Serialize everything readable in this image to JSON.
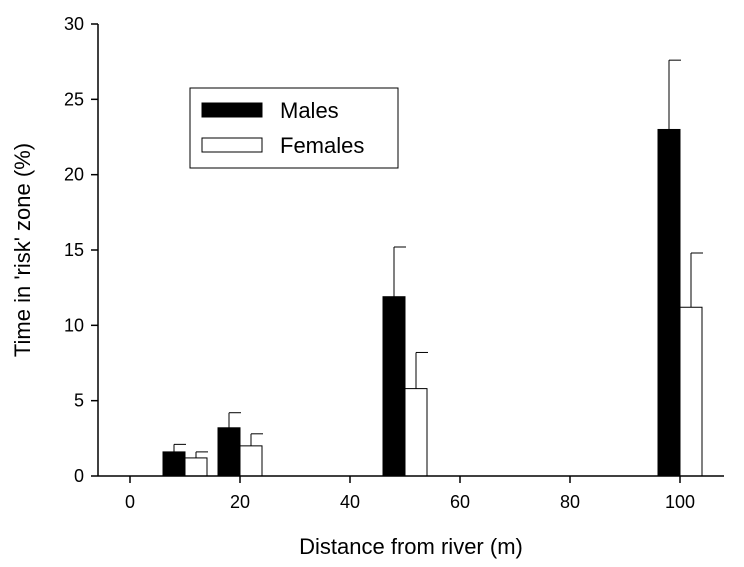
{
  "chart_data": {
    "type": "bar",
    "xlabel": "Distance from river (m)",
    "ylabel": "Time in 'risk' zone (%)",
    "xlim": [
      0,
      105
    ],
    "ylim": [
      0,
      30
    ],
    "x_ticks": [
      "0",
      "20",
      "40",
      "60",
      "80",
      "100"
    ],
    "y_ticks": [
      "0",
      "5",
      "10",
      "15",
      "20",
      "25",
      "30"
    ],
    "x": [
      10,
      20,
      50,
      100
    ],
    "series": [
      {
        "name": "Males",
        "color": "#000000",
        "values": [
          1.6,
          3.2,
          11.9,
          23.0
        ],
        "error": [
          0.5,
          1.0,
          3.3,
          4.6
        ]
      },
      {
        "name": "Females",
        "color": "#ffffff",
        "values": [
          1.2,
          2.0,
          5.8,
          11.2
        ],
        "error": [
          0.4,
          0.8,
          2.4,
          3.6
        ]
      }
    ],
    "legend": {
      "position": "top-left"
    }
  }
}
